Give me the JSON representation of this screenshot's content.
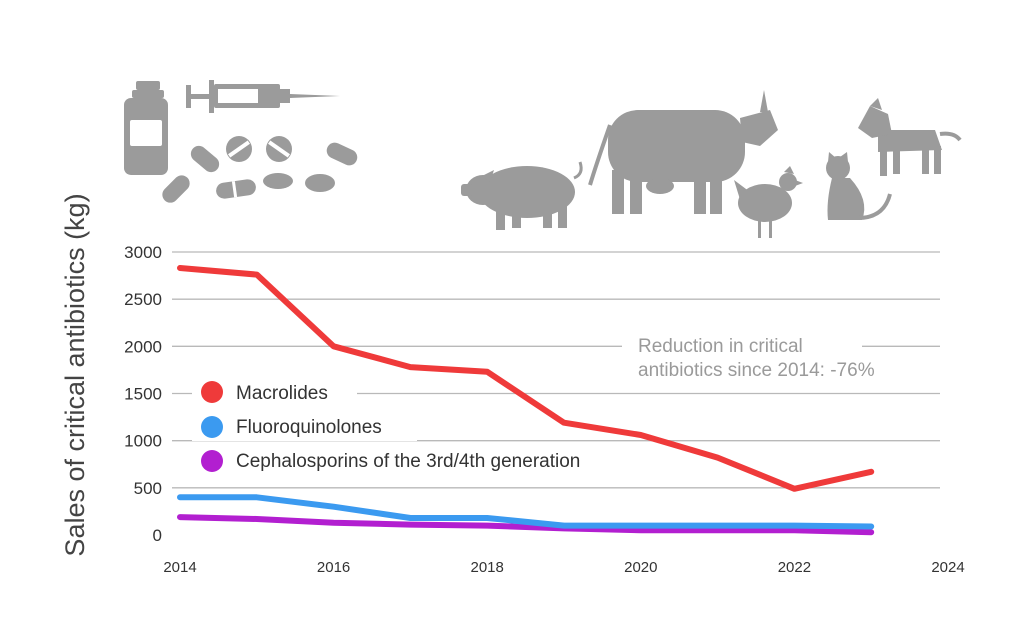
{
  "chart_data": {
    "type": "line",
    "title": "",
    "xlabel": "",
    "ylabel": "Sales of critical antibiotics (kg)",
    "xlim": [
      2014,
      2024
    ],
    "ylim": [
      0,
      3000
    ],
    "x_ticks": [
      "2014",
      "2016",
      "2018",
      "2020",
      "2022",
      "2024"
    ],
    "y_ticks": [
      "0",
      "500",
      "1000",
      "1500",
      "2000",
      "2500",
      "3000"
    ],
    "grid": true,
    "legend_position": "left",
    "annotation": [
      "Reduction in critical",
      "antibiotics since 2014: -76%"
    ],
    "series": [
      {
        "name": "Macrolides",
        "color": "#ef3a3a",
        "x": [
          2014,
          2015,
          2016,
          2017,
          2018,
          2019,
          2020,
          2021,
          2022,
          2023
        ],
        "values": [
          2830,
          2760,
          2000,
          1780,
          1730,
          1190,
          1060,
          820,
          490,
          670
        ]
      },
      {
        "name": "Fluoroquinolones",
        "color": "#3b9af0",
        "x": [
          2014,
          2015,
          2016,
          2017,
          2018,
          2019,
          2020,
          2021,
          2022,
          2023
        ],
        "values": [
          400,
          400,
          300,
          180,
          180,
          100,
          100,
          100,
          100,
          90
        ]
      },
      {
        "name": "Cephalosporins of the 3rd/4th generation",
        "color": "#b21fd0",
        "x": [
          2014,
          2015,
          2016,
          2017,
          2018,
          2019,
          2020,
          2021,
          2022,
          2023
        ],
        "values": [
          190,
          170,
          130,
          110,
          100,
          70,
          50,
          50,
          50,
          30
        ]
      }
    ]
  },
  "illustrations": {
    "left": [
      "vial-icon",
      "syringe-icon",
      "pills-icon",
      "capsules-icon"
    ],
    "right": [
      "pig-icon",
      "cow-icon",
      "chicken-icon",
      "cat-icon",
      "dog-icon"
    ]
  }
}
